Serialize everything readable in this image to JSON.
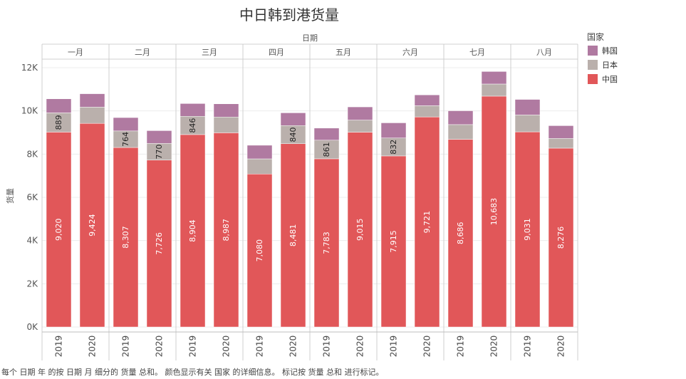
{
  "chart_data": {
    "type": "bar",
    "stacked": true,
    "title": "中日韩到港货量",
    "column_header": "日期",
    "ylabel": "货量",
    "ylim": [
      0,
      12800
    ],
    "yticks": [
      0,
      2000,
      4000,
      6000,
      8000,
      10000,
      12000
    ],
    "ytick_labels": [
      "0K",
      "2K",
      "4K",
      "6K",
      "8K",
      "10K",
      "12K"
    ],
    "months": [
      "一月",
      "二月",
      "三月",
      "四月",
      "五月",
      "六月",
      "七月",
      "八月"
    ],
    "years": [
      "2019",
      "2020"
    ],
    "legend_title": "国家",
    "legend_position": "top-right",
    "series": [
      {
        "name": "中国",
        "color": "#e15759",
        "values": [
          [
            9020,
            9424
          ],
          [
            8307,
            7726
          ],
          [
            8904,
            8987
          ],
          [
            7080,
            8481
          ],
          [
            7783,
            9015
          ],
          [
            7915,
            9721
          ],
          [
            8686,
            10683
          ],
          [
            9031,
            8276
          ]
        ],
        "labels": [
          [
            "9,020",
            "9,424"
          ],
          [
            "8,307",
            "7,726"
          ],
          [
            "8,904",
            "8,987"
          ],
          [
            "7,080",
            "8,481"
          ],
          [
            "7,783",
            "9,015"
          ],
          [
            "7,915",
            "9,721"
          ],
          [
            "8,686",
            "10,683"
          ],
          [
            "9,031",
            "8,276"
          ]
        ]
      },
      {
        "name": "日本",
        "color": "#bab0ac",
        "values": [
          [
            889,
            750
          ],
          [
            764,
            770
          ],
          [
            846,
            730
          ],
          [
            700,
            840
          ],
          [
            861,
            560
          ],
          [
            832,
            520
          ],
          [
            680,
            560
          ],
          [
            780,
            450
          ]
        ],
        "labels": [
          [
            "889",
            ""
          ],
          [
            "764",
            "770"
          ],
          [
            "846",
            ""
          ],
          [
            "",
            "840"
          ],
          [
            "861",
            ""
          ],
          [
            "832",
            ""
          ],
          [
            "",
            ""
          ],
          [
            "",
            ""
          ]
        ]
      },
      {
        "name": "韩国",
        "color": "#b07aa1",
        "values": [
          [
            650,
            620
          ],
          [
            620,
            590
          ],
          [
            590,
            610
          ],
          [
            630,
            590
          ],
          [
            560,
            610
          ],
          [
            700,
            500
          ],
          [
            640,
            580
          ],
          [
            720,
            590
          ]
        ]
      }
    ],
    "legend_order": [
      "韩国",
      "日本",
      "中国"
    ]
  },
  "footnote": "每个 日期 年 的按 日期 月 细分的 货量 总和。 颜色显示有关 国家 的详细信息。 标记按 货量 总和 进行标记。"
}
